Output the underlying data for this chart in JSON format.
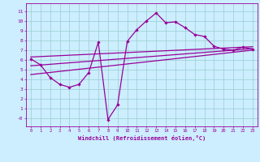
{
  "xlabel": "Windchill (Refroidissement éolien,°C)",
  "bg_color": "#cceeff",
  "line_color": "#990099",
  "grid_color": "#99cccc",
  "xlim": [
    -0.5,
    23.5
  ],
  "ylim": [
    -0.8,
    11.8
  ],
  "xticks": [
    0,
    1,
    2,
    3,
    4,
    5,
    6,
    7,
    8,
    9,
    10,
    11,
    12,
    13,
    14,
    15,
    16,
    17,
    18,
    19,
    20,
    21,
    22,
    23
  ],
  "yticks": [
    0,
    1,
    2,
    3,
    4,
    5,
    6,
    7,
    8,
    9,
    10,
    11
  ],
  "ytick_labels": [
    "-0",
    "1",
    "2",
    "3",
    "4",
    "5",
    "6",
    "7",
    "8",
    "9",
    "10",
    "11"
  ],
  "main_x": [
    0,
    1,
    2,
    3,
    4,
    5,
    6,
    7,
    8,
    9,
    10,
    11,
    12,
    13,
    14,
    15,
    16,
    17,
    18,
    19,
    20,
    21,
    22,
    23
  ],
  "main_y": [
    6.1,
    5.5,
    4.2,
    3.5,
    3.2,
    3.5,
    4.7,
    7.8,
    -0.1,
    1.4,
    7.9,
    9.1,
    10.0,
    10.8,
    9.8,
    9.9,
    9.3,
    8.6,
    8.4,
    7.4,
    7.1,
    7.0,
    7.3,
    7.1
  ],
  "line1_x": [
    0,
    23
  ],
  "line1_y": [
    6.3,
    7.35
  ],
  "line2_x": [
    0,
    23
  ],
  "line2_y": [
    5.4,
    7.15
  ],
  "line3_x": [
    0,
    23
  ],
  "line3_y": [
    4.5,
    7.0
  ]
}
